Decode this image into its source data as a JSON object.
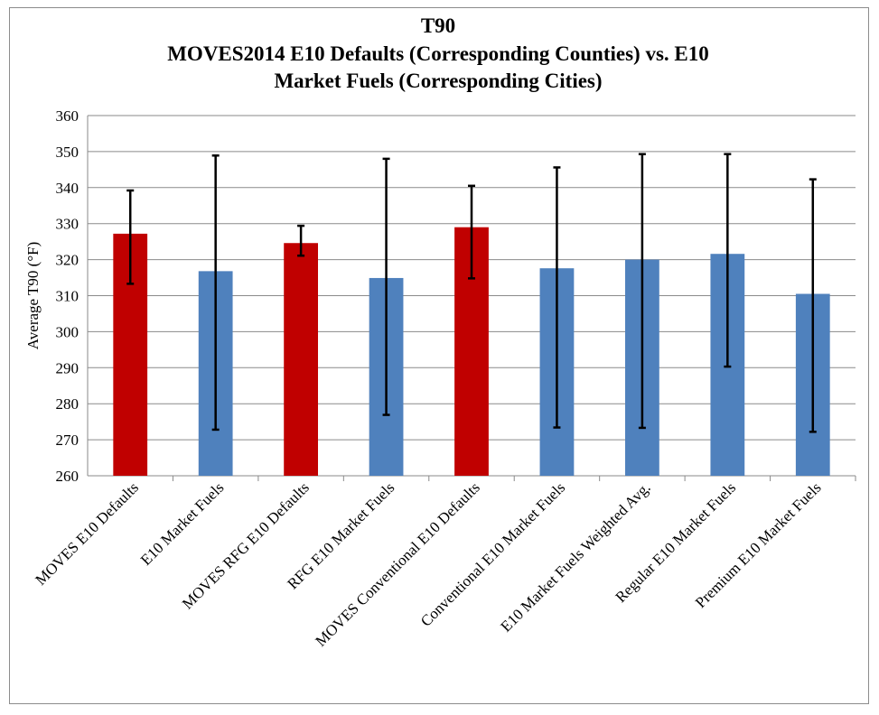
{
  "chart_data": {
    "type": "bar",
    "title_lines": [
      "T90",
      "MOVES2014 E10 Defaults (Corresponding Counties) vs. E10",
      "Market Fuels (Corresponding Cities)"
    ],
    "xlabel": "",
    "ylabel": "Average T90 (°F)",
    "ylim": [
      260,
      360
    ],
    "yticks": [
      260,
      270,
      280,
      290,
      300,
      310,
      320,
      330,
      340,
      350,
      360
    ],
    "grid": true,
    "categories": [
      "MOVES E10 Defaults",
      "E10 Market Fuels",
      "MOVES RFG E10 Defaults",
      "RFG E10  Market Fuels",
      "MOVES Conventional E10 Defaults",
      "Conventional E10 Market Fuels",
      "E10 Market Fuels Weighted Avg.",
      "Regular E10 Market Fuels",
      "Premium E10 Market Fuels"
    ],
    "values": [
      327.2,
      316.8,
      324.6,
      314.9,
      329.0,
      317.6,
      320.0,
      321.6,
      310.5
    ],
    "error_low": [
      313.3,
      272.8,
      321.1,
      276.9,
      314.8,
      273.4,
      273.3,
      290.3,
      272.2
    ],
    "error_high": [
      339.2,
      348.9,
      329.4,
      348.0,
      340.5,
      345.6,
      349.3,
      349.3,
      342.3
    ],
    "bar_colors": [
      "#c00000",
      "#4f81bd",
      "#c00000",
      "#4f81bd",
      "#c00000",
      "#4f81bd",
      "#4f81bd",
      "#4f81bd",
      "#4f81bd"
    ]
  }
}
